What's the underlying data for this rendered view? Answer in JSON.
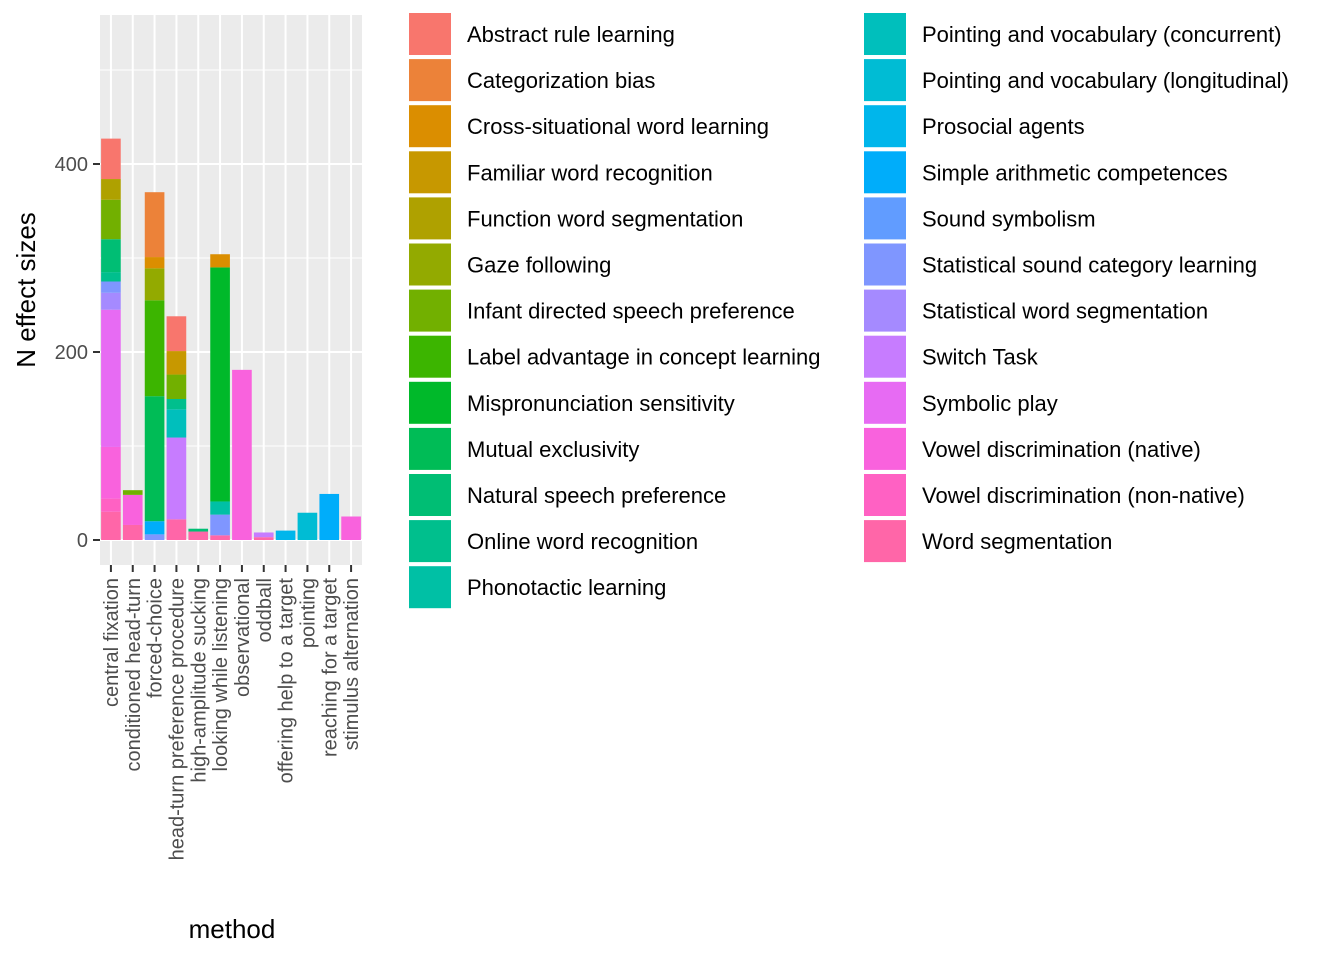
{
  "chart_data": {
    "type": "bar",
    "stacked": true,
    "xlabel": "method",
    "ylabel": "N effect sizes",
    "ylim": [
      0,
      560
    ],
    "yticks": [
      0,
      200,
      400
    ],
    "grid": true,
    "legend_position": "right",
    "categories": [
      "central fixation",
      "conditioned head-turn",
      "forced-choice",
      "head-turn preference procedure",
      "high-amplitude sucking",
      "looking while listening",
      "observational",
      "oddball",
      "offering help to a target",
      "pointing",
      "reaching for a target",
      "stimulus alternation"
    ],
    "series": [
      {
        "name": "Abstract rule learning",
        "color": "#F8766D",
        "values": [
          43,
          0,
          0,
          37,
          0,
          0,
          0,
          0,
          0,
          0,
          0,
          0
        ]
      },
      {
        "name": "Categorization bias",
        "color": "#EC8239",
        "values": [
          0,
          0,
          69,
          0,
          0,
          0,
          0,
          0,
          0,
          0,
          0,
          0
        ]
      },
      {
        "name": "Cross-situational word learning",
        "color": "#DB8E00",
        "values": [
          0,
          0,
          12,
          0,
          0,
          14,
          0,
          0,
          0,
          0,
          0,
          0
        ]
      },
      {
        "name": "Familiar word recognition",
        "color": "#C79800",
        "values": [
          0,
          0,
          0,
          25,
          0,
          0,
          0,
          0,
          0,
          0,
          0,
          0
        ]
      },
      {
        "name": "Function word segmentation",
        "color": "#AFA100",
        "values": [
          22,
          0,
          0,
          0,
          0,
          0,
          0,
          0,
          0,
          0,
          0,
          0
        ]
      },
      {
        "name": "Gaze following",
        "color": "#93AA00",
        "values": [
          0,
          0,
          34,
          0,
          0,
          0,
          0,
          0,
          0,
          0,
          0,
          0
        ]
      },
      {
        "name": "Infant directed speech preference",
        "color": "#72B000",
        "values": [
          42,
          5,
          0,
          26,
          0,
          0,
          0,
          0,
          0,
          0,
          0,
          0
        ]
      },
      {
        "name": "Label advantage in concept learning",
        "color": "#3CB500",
        "values": [
          0,
          0,
          102,
          0,
          0,
          0,
          0,
          0,
          0,
          0,
          0,
          0
        ]
      },
      {
        "name": "Mispronunciation sensitivity",
        "color": "#00B92A",
        "values": [
          0,
          0,
          0,
          0,
          0,
          249,
          0,
          0,
          0,
          0,
          0,
          0
        ]
      },
      {
        "name": "Mutual exclusivity",
        "color": "#00BC56",
        "values": [
          0,
          0,
          133,
          0,
          0,
          0,
          0,
          0,
          0,
          0,
          0,
          0
        ]
      },
      {
        "name": "Natural speech preference",
        "color": "#00BE74",
        "values": [
          35,
          0,
          0,
          0,
          3,
          0,
          0,
          0,
          0,
          0,
          0,
          0
        ]
      },
      {
        "name": "Online word recognition",
        "color": "#00BF8D",
        "values": [
          10,
          0,
          0,
          11,
          0,
          0,
          0,
          0,
          0,
          0,
          0,
          0
        ]
      },
      {
        "name": "Phonotactic learning",
        "color": "#00C0A5",
        "values": [
          0,
          0,
          0,
          0,
          0,
          14,
          0,
          0,
          0,
          0,
          0,
          0
        ]
      },
      {
        "name": "Pointing and vocabulary (concurrent)",
        "color": "#00BFBC",
        "values": [
          0,
          0,
          0,
          30,
          0,
          0,
          0,
          0,
          0,
          0,
          0,
          0
        ]
      },
      {
        "name": "Pointing and vocabulary (longitudinal)",
        "color": "#00BCD4",
        "values": [
          0,
          0,
          0,
          0,
          0,
          0,
          0,
          0,
          0,
          29,
          0,
          0
        ]
      },
      {
        "name": "Prosocial agents",
        "color": "#00B6EB",
        "values": [
          0,
          0,
          0,
          0,
          0,
          0,
          0,
          0,
          10,
          0,
          0,
          0
        ]
      },
      {
        "name": "Simple arithmetic competences",
        "color": "#00ADFA",
        "values": [
          0,
          0,
          14,
          0,
          0,
          0,
          0,
          0,
          0,
          0,
          49,
          0
        ]
      },
      {
        "name": "Sound symbolism",
        "color": "#619CFF",
        "values": [
          0,
          0,
          0,
          0,
          0,
          0,
          0,
          0,
          0,
          0,
          0,
          0
        ]
      },
      {
        "name": "Statistical sound category learning",
        "color": "#7F96FF",
        "values": [
          12,
          0,
          6,
          0,
          0,
          22,
          0,
          0,
          0,
          0,
          0,
          0
        ]
      },
      {
        "name": "Statistical word segmentation",
        "color": "#A58AFF",
        "values": [
          18,
          0,
          0,
          0,
          0,
          0,
          0,
          0,
          0,
          0,
          0,
          0
        ]
      },
      {
        "name": "Switch Task",
        "color": "#C77CFF",
        "values": [
          0,
          0,
          0,
          87,
          0,
          0,
          0,
          5,
          0,
          0,
          0,
          0
        ]
      },
      {
        "name": "Symbolic play",
        "color": "#E76BF3",
        "values": [
          146,
          0,
          0,
          0,
          0,
          0,
          0,
          0,
          0,
          0,
          0,
          0
        ]
      },
      {
        "name": "Vowel discrimination (native)",
        "color": "#F962DD",
        "values": [
          55,
          32,
          0,
          0,
          0,
          0,
          181,
          0,
          0,
          0,
          0,
          25
        ]
      },
      {
        "name": "Vowel discrimination (non-native)",
        "color": "#FF61C3",
        "values": [
          14,
          0,
          0,
          0,
          0,
          0,
          0,
          0,
          0,
          0,
          0,
          0
        ]
      },
      {
        "name": "Word segmentation",
        "color": "#FF66A8",
        "values": [
          30,
          16,
          0,
          22,
          9,
          5,
          0,
          3,
          0,
          0,
          0,
          0
        ]
      }
    ]
  }
}
